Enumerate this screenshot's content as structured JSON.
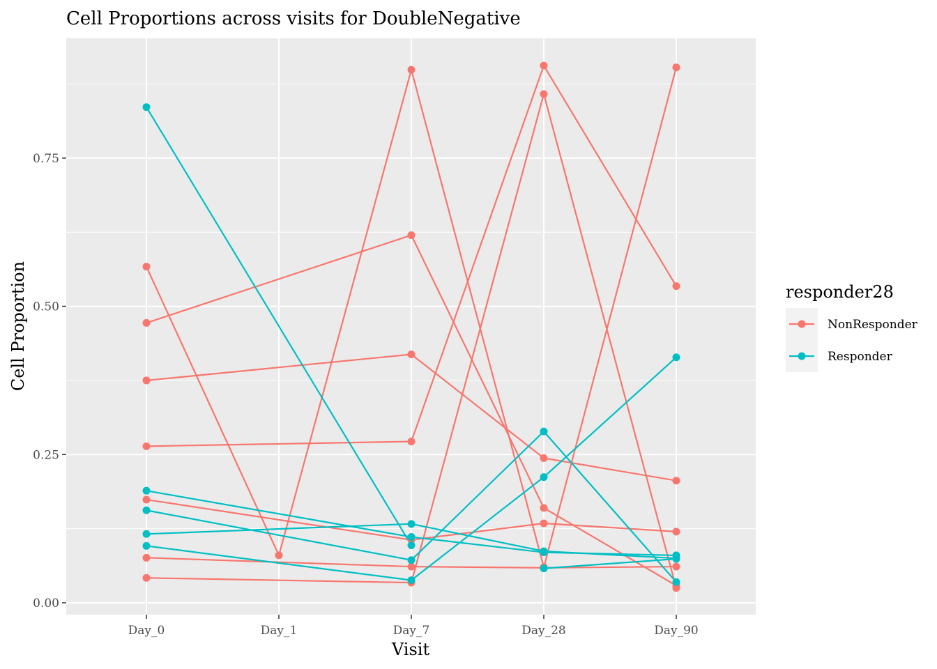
{
  "chart_data": {
    "type": "line",
    "title": "Cell Proportions across visits for DoubleNegative",
    "xlabel": "Visit",
    "ylabel": "Cell Proportion",
    "categories": [
      "Day_0",
      "Day_1",
      "Day_7",
      "Day_28",
      "Day_90"
    ],
    "y_ticks": [
      0.0,
      0.25,
      0.5,
      0.75
    ],
    "y_tick_labels": [
      "0.00",
      "0.25",
      "0.50",
      "0.75"
    ],
    "ylim": [
      -0.02,
      0.952
    ],
    "grid": true,
    "legend": {
      "title": "responder28",
      "position": "right",
      "entries": [
        {
          "label": "NonResponder",
          "color": "#F8766D"
        },
        {
          "label": "Responder",
          "color": "#00BFC4"
        }
      ]
    },
    "series": [
      {
        "group": "NonResponder",
        "points": [
          [
            "Day_0",
            0.567
          ],
          [
            "Day_1",
            0.08
          ],
          [
            "Day_7",
            0.899
          ],
          [
            "Day_28",
            0.06
          ],
          [
            "Day_90",
            0.903
          ]
        ]
      },
      {
        "group": "NonResponder",
        "points": [
          [
            "Day_0",
            0.472
          ],
          [
            "Day_7",
            0.62
          ],
          [
            "Day_28",
            0.16
          ],
          [
            "Day_90",
            0.029
          ]
        ]
      },
      {
        "group": "NonResponder",
        "points": [
          [
            "Day_0",
            0.375
          ],
          [
            "Day_7",
            0.419
          ],
          [
            "Day_28",
            0.244
          ],
          [
            "Day_90",
            0.206
          ]
        ]
      },
      {
        "group": "NonResponder",
        "points": [
          [
            "Day_0",
            0.264
          ],
          [
            "Day_7",
            0.272
          ],
          [
            "Day_28",
            0.906
          ],
          [
            "Day_90",
            0.534
          ]
        ]
      },
      {
        "group": "NonResponder",
        "points": [
          [
            "Day_0",
            0.174
          ],
          [
            "Day_7",
            0.106
          ],
          [
            "Day_28",
            0.134
          ],
          [
            "Day_90",
            0.12
          ]
        ]
      },
      {
        "group": "NonResponder",
        "points": [
          [
            "Day_0",
            0.076
          ],
          [
            "Day_7",
            0.061
          ],
          [
            "Day_28",
            0.059
          ],
          [
            "Day_90",
            0.061
          ]
        ]
      },
      {
        "group": "NonResponder",
        "points": [
          [
            "Day_0",
            0.042
          ],
          [
            "Day_7",
            0.034
          ],
          [
            "Day_28",
            0.858
          ],
          [
            "Day_90",
            0.025
          ]
        ]
      },
      {
        "group": "Responder",
        "points": [
          [
            "Day_0",
            0.836
          ],
          [
            "Day_7",
            0.097
          ]
        ]
      },
      {
        "group": "Responder",
        "points": [
          [
            "Day_0",
            0.189
          ],
          [
            "Day_7",
            0.111
          ],
          [
            "Day_28",
            0.085
          ],
          [
            "Day_90",
            0.08
          ]
        ]
      },
      {
        "group": "Responder",
        "points": [
          [
            "Day_0",
            0.156
          ],
          [
            "Day_7",
            0.072
          ],
          [
            "Day_28",
            0.289
          ],
          [
            "Day_90",
            0.035
          ]
        ]
      },
      {
        "group": "Responder",
        "points": [
          [
            "Day_0",
            0.116
          ],
          [
            "Day_7",
            0.133
          ],
          [
            "Day_28",
            0.087
          ],
          [
            "Day_90",
            0.075
          ]
        ]
      },
      {
        "group": "Responder",
        "points": [
          [
            "Day_0",
            0.096
          ],
          [
            "Day_7",
            0.038
          ],
          [
            "Day_28",
            0.212
          ],
          [
            "Day_90",
            0.414
          ]
        ]
      },
      {
        "group": "Responder",
        "points": [
          [
            "Day_28",
            0.058
          ],
          [
            "Day_90",
            0.074
          ]
        ]
      }
    ]
  }
}
